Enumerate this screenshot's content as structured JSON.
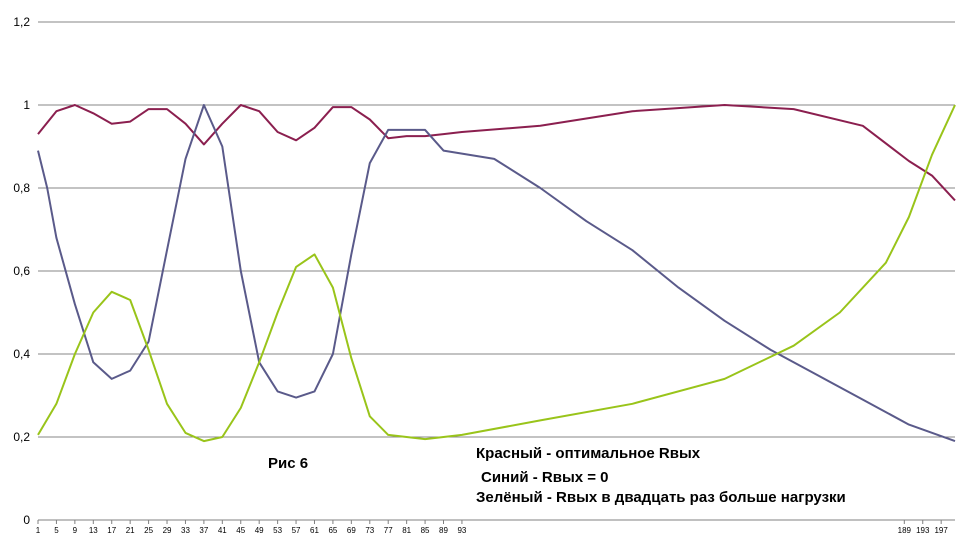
{
  "chart_data": {
    "type": "line",
    "title": "",
    "xlabel": "",
    "ylabel": "",
    "ylim": [
      0,
      1.2
    ],
    "xlim": [
      1,
      200
    ],
    "grid": "horizontal",
    "y_tick_labels": [
      "0",
      "0,2",
      "0,4",
      "0,6",
      "0,8",
      "1",
      "1,2"
    ],
    "y_tick_values": [
      0,
      0.2,
      0.4,
      0.6,
      0.8,
      1.0,
      1.2
    ],
    "x_tick_labels": [
      "1",
      "5",
      "9",
      "13",
      "17",
      "21",
      "25",
      "29",
      "33",
      "37",
      "41",
      "45",
      "49",
      "53",
      "57",
      "61",
      "65",
      "69",
      "73",
      "77",
      "81",
      "85",
      "89",
      "93",
      "189",
      "193",
      "197"
    ],
    "x_tick_values": [
      1,
      5,
      9,
      13,
      17,
      21,
      25,
      29,
      33,
      37,
      41,
      45,
      49,
      53,
      57,
      61,
      65,
      69,
      73,
      77,
      81,
      85,
      89,
      93,
      189,
      193,
      197
    ],
    "series": [
      {
        "color": "#8b1f4f",
        "x": [
          1,
          5,
          9,
          13,
          17,
          21,
          25,
          29,
          33,
          37,
          41,
          45,
          49,
          53,
          57,
          61,
          65,
          69,
          73,
          77,
          81,
          85,
          89,
          93,
          110,
          130,
          150,
          165,
          180,
          190,
          195,
          200
        ],
        "y": [
          0.93,
          0.985,
          1.0,
          0.98,
          0.955,
          0.96,
          0.99,
          0.99,
          0.955,
          0.905,
          0.955,
          1.0,
          0.985,
          0.935,
          0.915,
          0.945,
          0.995,
          0.995,
          0.965,
          0.92,
          0.925,
          0.925,
          0.93,
          0.935,
          0.95,
          0.985,
          1.0,
          0.99,
          0.95,
          0.865,
          0.83,
          0.77
        ]
      },
      {
        "color": "#5a5a8a",
        "x": [
          1,
          3,
          5,
          9,
          13,
          17,
          21,
          25,
          29,
          33,
          37,
          41,
          45,
          49,
          53,
          57,
          61,
          65,
          69,
          73,
          77,
          81,
          85,
          89,
          100,
          110,
          120,
          130,
          140,
          150,
          160,
          170,
          180,
          190,
          200
        ],
        "y": [
          0.89,
          0.8,
          0.68,
          0.52,
          0.38,
          0.34,
          0.36,
          0.43,
          0.65,
          0.87,
          1.0,
          0.9,
          0.6,
          0.38,
          0.31,
          0.295,
          0.31,
          0.4,
          0.64,
          0.86,
          0.94,
          0.94,
          0.94,
          0.89,
          0.87,
          0.8,
          0.72,
          0.65,
          0.56,
          0.48,
          0.41,
          0.35,
          0.29,
          0.23,
          0.19
        ]
      },
      {
        "color": "#99c41a",
        "x": [
          1,
          5,
          9,
          13,
          17,
          21,
          25,
          29,
          33,
          37,
          41,
          45,
          49,
          53,
          57,
          61,
          65,
          69,
          73,
          77,
          81,
          85,
          89,
          93,
          110,
          130,
          150,
          165,
          175,
          185,
          190,
          195,
          200
        ],
        "y": [
          0.205,
          0.28,
          0.4,
          0.5,
          0.55,
          0.53,
          0.41,
          0.28,
          0.21,
          0.19,
          0.2,
          0.27,
          0.38,
          0.5,
          0.61,
          0.64,
          0.56,
          0.39,
          0.25,
          0.205,
          0.2,
          0.195,
          0.2,
          0.205,
          0.24,
          0.28,
          0.34,
          0.42,
          0.5,
          0.62,
          0.73,
          0.88,
          1.0
        ]
      }
    ],
    "annotations": [
      "Рис 6",
      "Красный - оптимальное Rвых",
      "Синий - Rвых = 0",
      "Зелёный - Rвых в двадцать раз больше нагрузки"
    ]
  }
}
